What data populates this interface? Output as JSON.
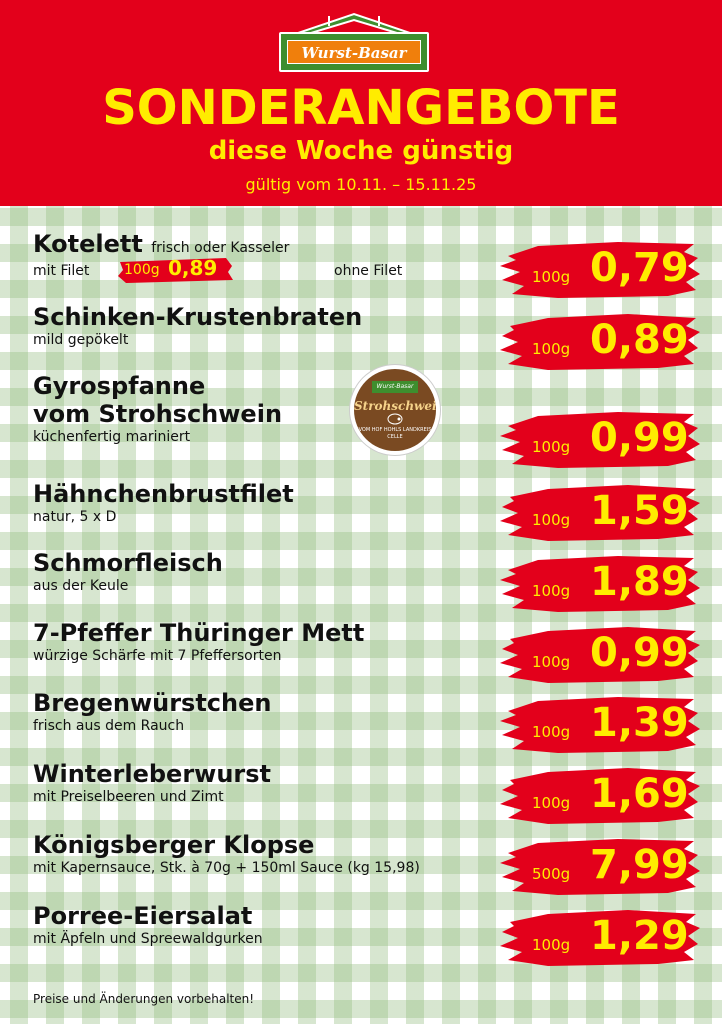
{
  "header": {
    "logo_text": "Wurst-Basar",
    "title": "SONDERANGEBOTE",
    "subtitle": "diese Woche günstig",
    "validity": "gültig vom 10.11. – 15.11.25"
  },
  "colors": {
    "header_red": "#e3001b",
    "text_yellow": "#ffec00",
    "check_green": "#96be82",
    "brush_red": "#e3001b"
  },
  "badge": {
    "top": "Wurst-Basar",
    "title": "Strohschwein",
    "bottom": "VOM HOF HOHLS LANDKREIS CELLE"
  },
  "items": [
    {
      "name": "Kotelett",
      "inline_desc": "frisch oder Kasseler",
      "desc": "mit Filet",
      "unit": "100g",
      "price": "0,79",
      "mini_unit": "100g",
      "mini_price": "0,89",
      "extra": "ohne Filet"
    },
    {
      "name": "Schinken-Krustenbraten",
      "desc": "mild gepökelt",
      "unit": "100g",
      "price": "0,89"
    },
    {
      "name": "Gyrospfanne",
      "name2": "vom Strohschwein",
      "desc": "küchenfertig mariniert",
      "unit": "100g",
      "price": "0,99"
    },
    {
      "name": "Hähnchenbrustfilet",
      "desc": "natur, 5 x D",
      "unit": "100g",
      "price": "1,59"
    },
    {
      "name": "Schmorfleisch",
      "desc": "aus der Keule",
      "unit": "100g",
      "price": "1,89"
    },
    {
      "name": "7-Pfeffer Thüringer Mett",
      "desc": "würzige Schärfe mit 7 Pfeffersorten",
      "unit": "100g",
      "price": "0,99"
    },
    {
      "name": "Bregenwürstchen",
      "desc": "frisch aus dem Rauch",
      "unit": "100g",
      "price": "1,39"
    },
    {
      "name": "Winterleberwurst",
      "desc": "mit Preiselbeeren und Zimt",
      "unit": "100g",
      "price": "1,69"
    },
    {
      "name": "Königsberger Klopse",
      "desc": "mit Kapernsauce, Stk. à 70g + 150ml Sauce (kg 15,98)",
      "unit": "500g",
      "price": "7,99"
    },
    {
      "name": "Porree-Eiersalat",
      "desc": "mit Äpfeln und Spreewaldgurken",
      "unit": "100g",
      "price": "1,29"
    }
  ],
  "footer": "Preise und Änderungen vorbehalten!"
}
